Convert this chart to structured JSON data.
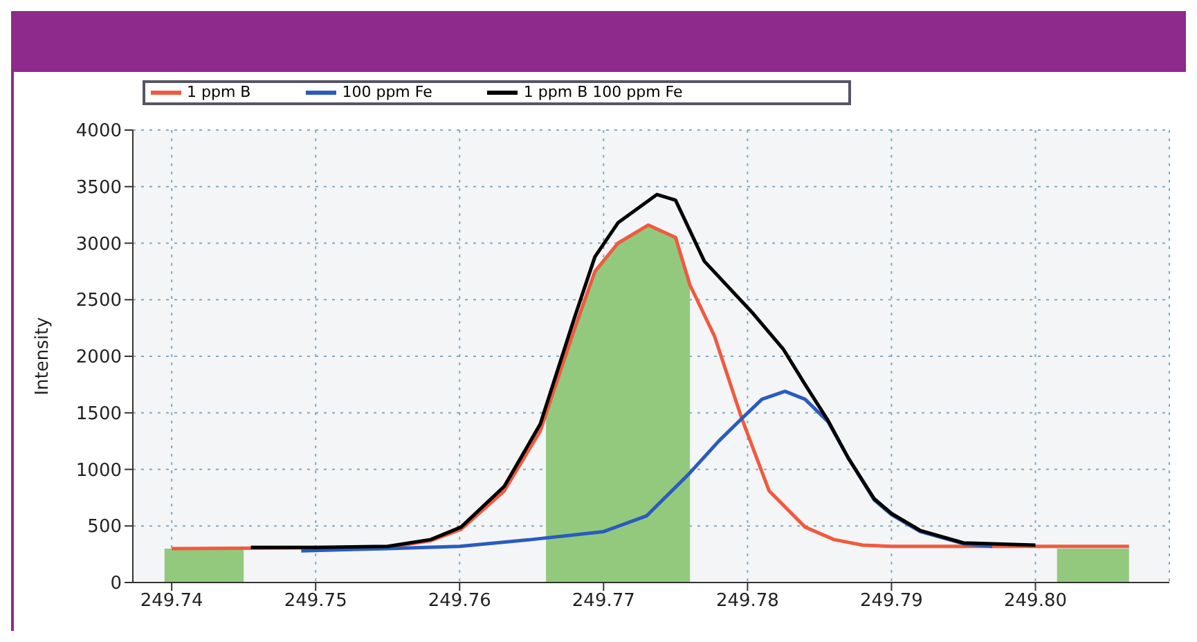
{
  "chart_data": {
    "type": "line",
    "ylabel": "Intensity",
    "xlim": [
      249.7373,
      249.8093
    ],
    "ylim": [
      0,
      4000
    ],
    "xticks": [
      249.74,
      249.75,
      249.76,
      249.77,
      249.78,
      249.79,
      {
        "value": 249.8,
        "label": "249.80"
      }
    ],
    "yticks": [
      0,
      500,
      1000,
      1500,
      2000,
      2500,
      3000,
      3500,
      4000
    ],
    "grid": true,
    "legend": "top",
    "marker": "none",
    "line_style": "solid",
    "series": [
      {
        "type": "area",
        "color": "#93c97c",
        "x": [
          249.7395,
          249.745,
          249.7455,
          249.766,
          249.768,
          249.7694,
          249.771,
          249.7731,
          249.775,
          249.776,
          249.7765,
          249.8015,
          249.8065
        ],
        "values": [
          300,
          300,
          null,
          1450,
          2250,
          2750,
          3000,
          3160,
          3050,
          2630,
          null,
          300,
          300
        ]
      },
      {
        "name": "1 ppm B",
        "color": "#f05a40",
        "x": [
          249.74,
          249.755,
          249.758,
          249.7601,
          249.7631,
          249.7656,
          249.768,
          249.7694,
          249.771,
          249.7731,
          249.775,
          249.776,
          249.7777,
          249.7796,
          249.7815,
          249.784,
          249.786,
          249.788,
          249.79,
          249.8,
          249.8065
        ],
        "values": [
          300,
          310,
          370,
          470,
          810,
          1340,
          2250,
          2750,
          3000,
          3160,
          3050,
          2630,
          2180,
          1450,
          810,
          490,
          380,
          330,
          320,
          320,
          320
        ]
      },
      {
        "name": "100 ppm Fe",
        "color": "#2a5bbf",
        "x": [
          249.749,
          249.755,
          249.76,
          249.765,
          249.77,
          249.773,
          249.776,
          249.778,
          249.7796,
          249.781,
          249.7826,
          249.784,
          249.7856,
          249.787,
          249.7888,
          249.79,
          249.792,
          249.7951,
          249.797
        ],
        "values": [
          280,
          300,
          320,
          380,
          450,
          590,
          970,
          1250,
          1450,
          1620,
          1690,
          1620,
          1420,
          1100,
          730,
          600,
          450,
          340,
          320
        ]
      },
      {
        "name": "1 ppm B 100 ppm Fe",
        "color": "#000000",
        "x": [
          249.7455,
          249.75,
          249.755,
          249.758,
          249.7601,
          249.7631,
          249.7656,
          249.768,
          249.7694,
          249.771,
          249.7737,
          249.775,
          249.777,
          249.7803,
          249.7825,
          249.784,
          249.7856,
          249.787,
          249.7888,
          249.79,
          249.792,
          249.795,
          249.8
        ],
        "values": [
          310,
          310,
          320,
          380,
          490,
          850,
          1400,
          2350,
          2880,
          3180,
          3430,
          3380,
          2840,
          2390,
          2060,
          1750,
          1430,
          1100,
          740,
          610,
          460,
          350,
          330
        ]
      }
    ]
  }
}
